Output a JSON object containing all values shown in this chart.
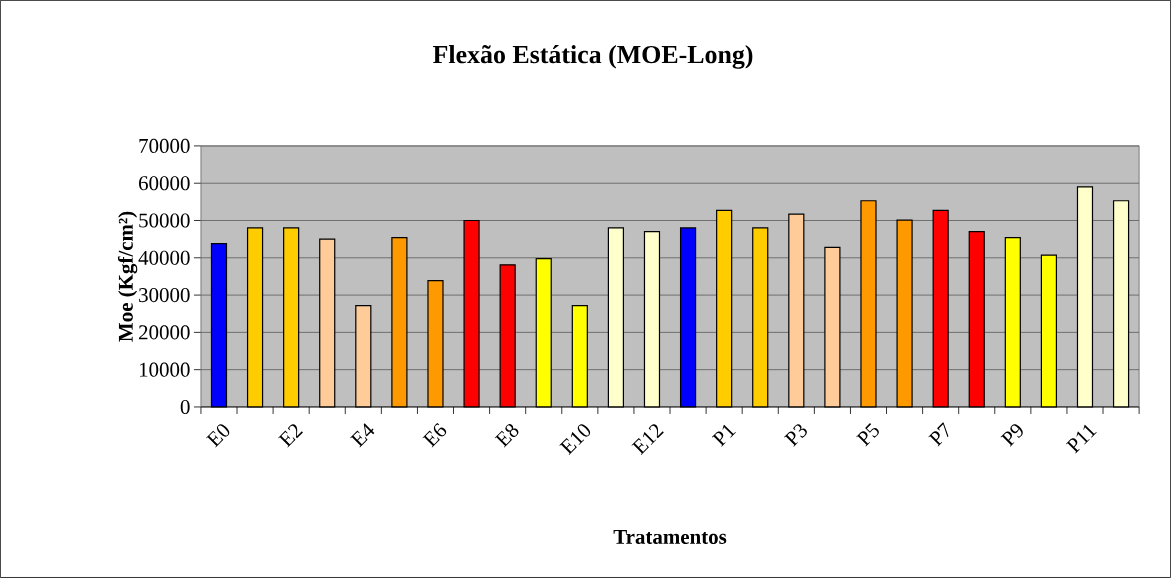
{
  "chart_data": {
    "type": "bar",
    "title": "Flexão Estática (MOE-Long)",
    "xlabel": "Tratamentos",
    "ylabel": "Moe (Kgf/cm²)",
    "categories": [
      "E0",
      null,
      "E2",
      null,
      "E4",
      null,
      "E6",
      null,
      "E8",
      null,
      "E10",
      null,
      "E12",
      null,
      "P1",
      null,
      "P3",
      null,
      "P5",
      null,
      "P7",
      null,
      "P9",
      null,
      "P11",
      null
    ],
    "values": [
      43800,
      48000,
      48000,
      45000,
      27200,
      45400,
      33900,
      50000,
      38100,
      39800,
      27200,
      48000,
      47000,
      48000,
      52700,
      48000,
      51700,
      42800,
      55300,
      50100,
      52700,
      47000,
      45400,
      40700,
      59000,
      55300
    ],
    "colors": [
      "#0000ff",
      "#ffcc00",
      "#ffcc00",
      "#ffcc99",
      "#ffcc99",
      "#ff9900",
      "#ff9900",
      "#ff0000",
      "#ff0000",
      "#ffff00",
      "#ffff00",
      "#ffffcc",
      "#ffffcc",
      "#0000ff",
      "#ffcc00",
      "#ffcc00",
      "#ffcc99",
      "#ffcc99",
      "#ff9900",
      "#ff9900",
      "#ff0000",
      "#ff0000",
      "#ffff00",
      "#ffff00",
      "#ffffcc",
      "#ffffcc"
    ],
    "ylim": [
      0,
      70000
    ],
    "yticks": [
      0,
      10000,
      20000,
      30000,
      40000,
      50000,
      60000,
      70000
    ],
    "grid": "y"
  }
}
